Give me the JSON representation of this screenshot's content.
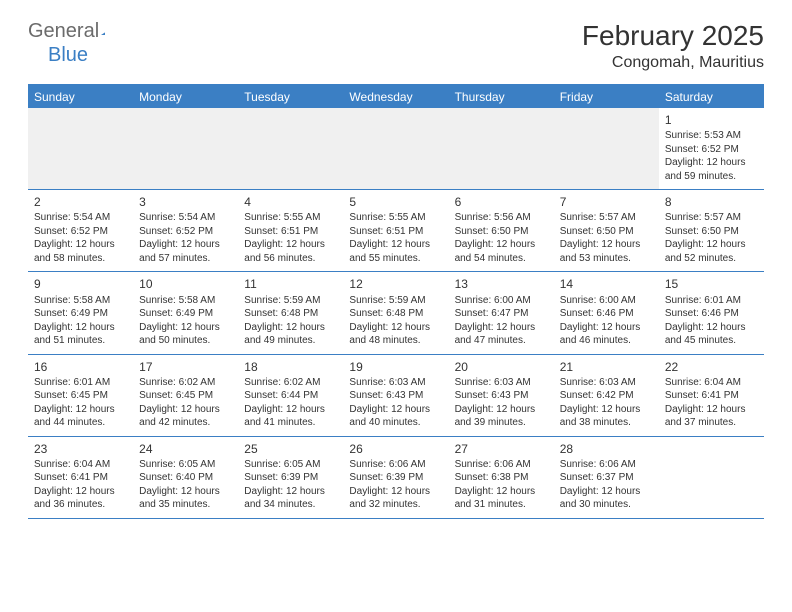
{
  "logo": {
    "word1": "General",
    "word2": "Blue"
  },
  "title": "February 2025",
  "location": "Congomah, Mauritius",
  "dayNames": [
    "Sunday",
    "Monday",
    "Tuesday",
    "Wednesday",
    "Thursday",
    "Friday",
    "Saturday"
  ],
  "colors": {
    "accent": "#3b7fc4",
    "headerText": "#ffffff",
    "bodyText": "#333333",
    "blankRowBg": "#f0f0f0"
  },
  "typography": {
    "titleSize": 28,
    "locationSize": 16,
    "dayHeaderSize": 12,
    "cellFontSize": 10,
    "dayNumSize": 12
  },
  "layout": {
    "columns": 7,
    "rows": 5,
    "firstDayOffset": 6
  },
  "days": [
    {
      "n": 1,
      "sunrise": "5:53 AM",
      "sunset": "6:52 PM",
      "dl": "12 hours and 59 minutes."
    },
    {
      "n": 2,
      "sunrise": "5:54 AM",
      "sunset": "6:52 PM",
      "dl": "12 hours and 58 minutes."
    },
    {
      "n": 3,
      "sunrise": "5:54 AM",
      "sunset": "6:52 PM",
      "dl": "12 hours and 57 minutes."
    },
    {
      "n": 4,
      "sunrise": "5:55 AM",
      "sunset": "6:51 PM",
      "dl": "12 hours and 56 minutes."
    },
    {
      "n": 5,
      "sunrise": "5:55 AM",
      "sunset": "6:51 PM",
      "dl": "12 hours and 55 minutes."
    },
    {
      "n": 6,
      "sunrise": "5:56 AM",
      "sunset": "6:50 PM",
      "dl": "12 hours and 54 minutes."
    },
    {
      "n": 7,
      "sunrise": "5:57 AM",
      "sunset": "6:50 PM",
      "dl": "12 hours and 53 minutes."
    },
    {
      "n": 8,
      "sunrise": "5:57 AM",
      "sunset": "6:50 PM",
      "dl": "12 hours and 52 minutes."
    },
    {
      "n": 9,
      "sunrise": "5:58 AM",
      "sunset": "6:49 PM",
      "dl": "12 hours and 51 minutes."
    },
    {
      "n": 10,
      "sunrise": "5:58 AM",
      "sunset": "6:49 PM",
      "dl": "12 hours and 50 minutes."
    },
    {
      "n": 11,
      "sunrise": "5:59 AM",
      "sunset": "6:48 PM",
      "dl": "12 hours and 49 minutes."
    },
    {
      "n": 12,
      "sunrise": "5:59 AM",
      "sunset": "6:48 PM",
      "dl": "12 hours and 48 minutes."
    },
    {
      "n": 13,
      "sunrise": "6:00 AM",
      "sunset": "6:47 PM",
      "dl": "12 hours and 47 minutes."
    },
    {
      "n": 14,
      "sunrise": "6:00 AM",
      "sunset": "6:46 PM",
      "dl": "12 hours and 46 minutes."
    },
    {
      "n": 15,
      "sunrise": "6:01 AM",
      "sunset": "6:46 PM",
      "dl": "12 hours and 45 minutes."
    },
    {
      "n": 16,
      "sunrise": "6:01 AM",
      "sunset": "6:45 PM",
      "dl": "12 hours and 44 minutes."
    },
    {
      "n": 17,
      "sunrise": "6:02 AM",
      "sunset": "6:45 PM",
      "dl": "12 hours and 42 minutes."
    },
    {
      "n": 18,
      "sunrise": "6:02 AM",
      "sunset": "6:44 PM",
      "dl": "12 hours and 41 minutes."
    },
    {
      "n": 19,
      "sunrise": "6:03 AM",
      "sunset": "6:43 PM",
      "dl": "12 hours and 40 minutes."
    },
    {
      "n": 20,
      "sunrise": "6:03 AM",
      "sunset": "6:43 PM",
      "dl": "12 hours and 39 minutes."
    },
    {
      "n": 21,
      "sunrise": "6:03 AM",
      "sunset": "6:42 PM",
      "dl": "12 hours and 38 minutes."
    },
    {
      "n": 22,
      "sunrise": "6:04 AM",
      "sunset": "6:41 PM",
      "dl": "12 hours and 37 minutes."
    },
    {
      "n": 23,
      "sunrise": "6:04 AM",
      "sunset": "6:41 PM",
      "dl": "12 hours and 36 minutes."
    },
    {
      "n": 24,
      "sunrise": "6:05 AM",
      "sunset": "6:40 PM",
      "dl": "12 hours and 35 minutes."
    },
    {
      "n": 25,
      "sunrise": "6:05 AM",
      "sunset": "6:39 PM",
      "dl": "12 hours and 34 minutes."
    },
    {
      "n": 26,
      "sunrise": "6:06 AM",
      "sunset": "6:39 PM",
      "dl": "12 hours and 32 minutes."
    },
    {
      "n": 27,
      "sunrise": "6:06 AM",
      "sunset": "6:38 PM",
      "dl": "12 hours and 31 minutes."
    },
    {
      "n": 28,
      "sunrise": "6:06 AM",
      "sunset": "6:37 PM",
      "dl": "12 hours and 30 minutes."
    }
  ],
  "labels": {
    "sunrise": "Sunrise:",
    "sunset": "Sunset:",
    "daylight": "Daylight:"
  }
}
